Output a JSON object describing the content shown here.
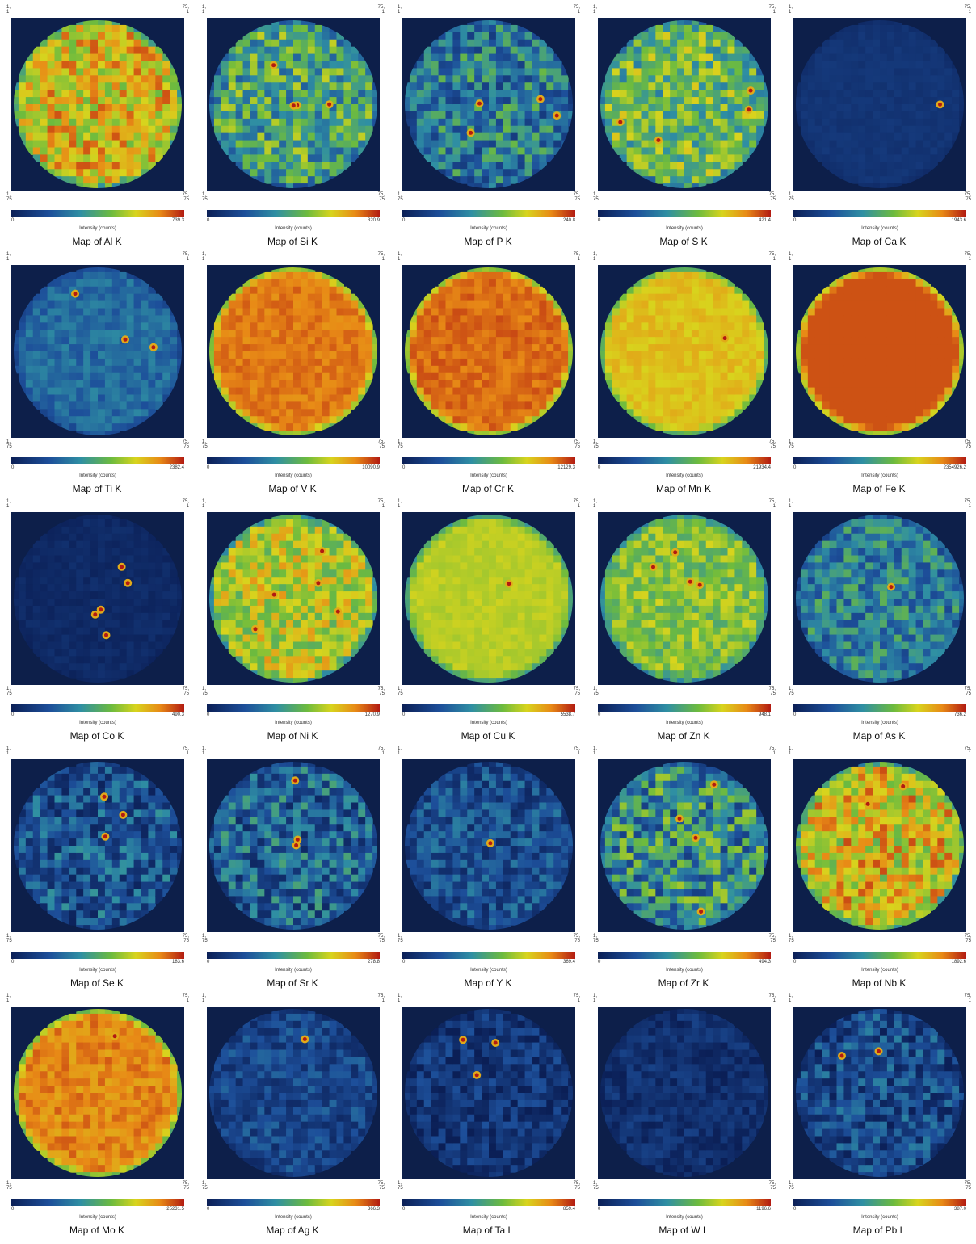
{
  "chart_data": {
    "type": "heatmap",
    "grid": {
      "columns": 5,
      "rows": 5
    },
    "map_axis_labels": {
      "top_left": "1,\n1",
      "top_right": "75,\n1",
      "bottom_left": "1,\n75",
      "bottom_right": "75,\n75"
    },
    "colorbar_label": "Intensity (counts)",
    "colorbar_min": "0",
    "colormap": [
      "#0b1f56",
      "#1d4f9a",
      "#2f8fa3",
      "#6dbb3e",
      "#d8d41d",
      "#e88a16",
      "#b21a12"
    ],
    "background_color": "#0d1f4a",
    "maps": [
      {
        "title": "Map of Al K",
        "max": "739.3",
        "mean_level": 0.75,
        "variability": 0.18,
        "hotspots": 0
      },
      {
        "title": "Map of Si K",
        "max": "320.9",
        "mean_level": 0.48,
        "variability": 0.22,
        "hotspots": 4
      },
      {
        "title": "Map of P K",
        "max": "240.8",
        "mean_level": 0.35,
        "variability": 0.22,
        "hotspots": 4
      },
      {
        "title": "Map of S K",
        "max": "421.4",
        "mean_level": 0.55,
        "variability": 0.2,
        "hotspots": 4
      },
      {
        "title": "Map of Ca K",
        "max": "1943.6",
        "mean_level": 0.1,
        "variability": 0.02,
        "hotspots": 1
      },
      {
        "title": "Map of Ti K",
        "max": "2382.4",
        "mean_level": 0.3,
        "variability": 0.08,
        "hotspots": 3
      },
      {
        "title": "Map of V K",
        "max": "10090.9",
        "mean_level": 0.88,
        "variability": 0.04,
        "hotspots": 0
      },
      {
        "title": "Map of Cr K",
        "max": "12129.3",
        "mean_level": 0.9,
        "variability": 0.04,
        "hotspots": 0
      },
      {
        "title": "Map of Mn K",
        "max": "21934.4",
        "mean_level": 0.76,
        "variability": 0.04,
        "hotspots": 1
      },
      {
        "title": "Map of Fe K",
        "max": "2354926.2",
        "mean_level": 0.93,
        "variability": 0.0,
        "hotspots": 0
      },
      {
        "title": "Map of Co K",
        "max": "490.3",
        "mean_level": 0.05,
        "variability": 0.03,
        "hotspots": 5
      },
      {
        "title": "Map of Ni K",
        "max": "1270.9",
        "mean_level": 0.68,
        "variability": 0.16,
        "hotspots": 5
      },
      {
        "title": "Map of Cu K",
        "max": "5538.7",
        "mean_level": 0.68,
        "variability": 0.03,
        "hotspots": 1
      },
      {
        "title": "Map of Zn K",
        "max": "948.1",
        "mean_level": 0.6,
        "variability": 0.12,
        "hotspots": 4
      },
      {
        "title": "Map of As K",
        "max": "736.2",
        "mean_level": 0.36,
        "variability": 0.18,
        "hotspots": 1
      },
      {
        "title": "Map of Se K",
        "max": "183.6",
        "mean_level": 0.22,
        "variability": 0.2,
        "hotspots": 3
      },
      {
        "title": "Map of Sr K",
        "max": "278.8",
        "mean_level": 0.26,
        "variability": 0.22,
        "hotspots": 3
      },
      {
        "title": "Map of Y K",
        "max": "369.4",
        "mean_level": 0.2,
        "variability": 0.16,
        "hotspots": 1
      },
      {
        "title": "Map of Zr K",
        "max": "494.3",
        "mean_level": 0.4,
        "variability": 0.26,
        "hotspots": 4
      },
      {
        "title": "Map of Nb K",
        "max": "1892.6",
        "mean_level": 0.74,
        "variability": 0.2,
        "hotspots": 2
      },
      {
        "title": "Map of Mo K",
        "max": "25231.5",
        "mean_level": 0.86,
        "variability": 0.06,
        "hotspots": 1
      },
      {
        "title": "Map of Ag K",
        "max": "366.3",
        "mean_level": 0.17,
        "variability": 0.12,
        "hotspots": 1
      },
      {
        "title": "Map of Ta L",
        "max": "859.4",
        "mean_level": 0.1,
        "variability": 0.13,
        "hotspots": 3
      },
      {
        "title": "Map of W L",
        "max": "1196.6",
        "mean_level": 0.08,
        "variability": 0.08,
        "hotspots": 0
      },
      {
        "title": "Map of Pb L",
        "max": "387.0",
        "mean_level": 0.18,
        "variability": 0.18,
        "hotspots": 2
      }
    ]
  }
}
